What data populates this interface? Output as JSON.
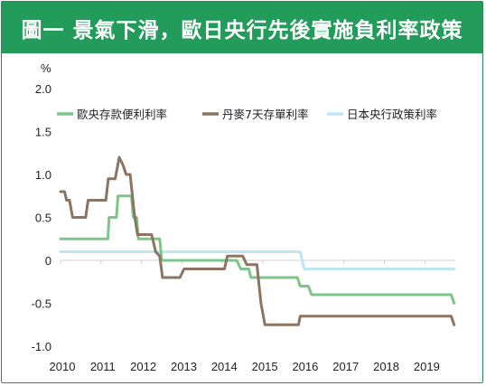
{
  "title": "圖一 景氣下滑，歐日央行先後實施負利率政策",
  "chart_data": {
    "type": "line",
    "title": "圖一 景氣下滑，歐日央行先後實施負利率政策",
    "ylabel": "%",
    "xlabel": "",
    "ylim": [
      -1.0,
      2.0
    ],
    "xlim": [
      2010,
      2019.75
    ],
    "y_ticks": [
      "2.0",
      "1.5",
      "1.0",
      "0.5",
      "0",
      "-0.5",
      "-1.0"
    ],
    "y_tick_values": [
      2.0,
      1.5,
      1.0,
      0.5,
      0,
      -0.5,
      -1.0
    ],
    "x_ticks": [
      "2010",
      "2011",
      "2012",
      "2013",
      "2014",
      "2015",
      "2016",
      "2017",
      "2018",
      "2019"
    ],
    "x_tick_values": [
      2010,
      2011,
      2012,
      2013,
      2014,
      2015,
      2016,
      2017,
      2018,
      2019
    ],
    "grid": false,
    "legend_position": "top",
    "series": [
      {
        "name": "歐央存款便利利率",
        "color": "#7cc68a",
        "points": [
          [
            2010,
            0.25
          ],
          [
            2011.17,
            0.25
          ],
          [
            2011.2,
            0.5
          ],
          [
            2011.38,
            0.5
          ],
          [
            2011.42,
            0.75
          ],
          [
            2011.75,
            0.75
          ],
          [
            2011.8,
            0.5
          ],
          [
            2011.88,
            0.5
          ],
          [
            2011.92,
            0.25
          ],
          [
            2012.45,
            0.25
          ],
          [
            2012.5,
            0.0
          ],
          [
            2014.35,
            0.0
          ],
          [
            2014.45,
            -0.1
          ],
          [
            2014.65,
            -0.1
          ],
          [
            2014.7,
            -0.2
          ],
          [
            2015.85,
            -0.2
          ],
          [
            2015.92,
            -0.3
          ],
          [
            2016.12,
            -0.3
          ],
          [
            2016.2,
            -0.4
          ],
          [
            2019.65,
            -0.4
          ],
          [
            2019.72,
            -0.5
          ]
        ]
      },
      {
        "name": "丹麥7天存單利率",
        "color": "#8c7462",
        "points": [
          [
            2010,
            0.8
          ],
          [
            2010.1,
            0.8
          ],
          [
            2010.15,
            0.7
          ],
          [
            2010.22,
            0.7
          ],
          [
            2010.3,
            0.5
          ],
          [
            2010.62,
            0.5
          ],
          [
            2010.68,
            0.7
          ],
          [
            2011.12,
            0.7
          ],
          [
            2011.18,
            0.95
          ],
          [
            2011.35,
            0.95
          ],
          [
            2011.45,
            1.2
          ],
          [
            2011.55,
            1.1
          ],
          [
            2011.62,
            1.0
          ],
          [
            2011.72,
            1.0
          ],
          [
            2011.82,
            0.55
          ],
          [
            2011.9,
            0.3
          ],
          [
            2012.25,
            0.3
          ],
          [
            2012.3,
            0.2
          ],
          [
            2012.35,
            0.1
          ],
          [
            2012.45,
            0.05
          ],
          [
            2012.52,
            -0.2
          ],
          [
            2012.95,
            -0.2
          ],
          [
            2013.05,
            -0.1
          ],
          [
            2014.05,
            -0.1
          ],
          [
            2014.12,
            0.05
          ],
          [
            2014.5,
            0.05
          ],
          [
            2014.6,
            -0.05
          ],
          [
            2014.85,
            -0.05
          ],
          [
            2014.95,
            -0.5
          ],
          [
            2015.05,
            -0.75
          ],
          [
            2015.88,
            -0.75
          ],
          [
            2015.92,
            -0.65
          ],
          [
            2019.65,
            -0.65
          ],
          [
            2019.72,
            -0.75
          ]
        ]
      },
      {
        "name": "日本央行政策利率",
        "color": "#bfe6f3",
        "points": [
          [
            2010,
            0.1
          ],
          [
            2015.92,
            0.1
          ],
          [
            2016.02,
            -0.1
          ],
          [
            2019.72,
            -0.1
          ]
        ]
      }
    ]
  }
}
